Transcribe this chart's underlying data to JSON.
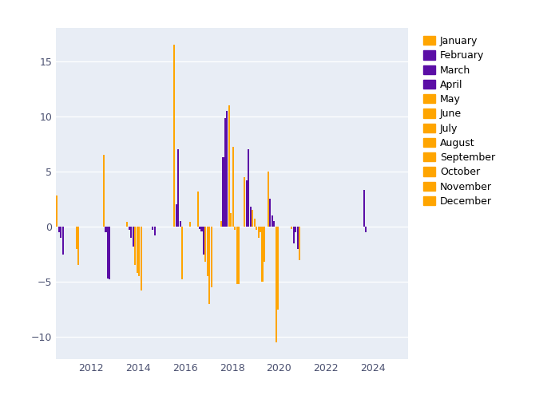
{
  "outer_bg": "#ffffff",
  "plot_bg_color": "#e8edf5",
  "orange_color": "#FFA500",
  "purple_color": "#5B0EA6",
  "months": [
    "January",
    "February",
    "March",
    "April",
    "May",
    "June",
    "July",
    "August",
    "September",
    "October",
    "November",
    "December"
  ],
  "month_colors": [
    "#FFA500",
    "#5B0EA6",
    "#5B0EA6",
    "#5B0EA6",
    "#FFA500",
    "#FFA500",
    "#FFA500",
    "#FFA500",
    "#FFA500",
    "#FFA500",
    "#FFA500",
    "#FFA500"
  ],
  "data": [
    {
      "year": 2011,
      "month": 1,
      "value": 2.8
    },
    {
      "year": 2011,
      "month": 2,
      "value": -0.5
    },
    {
      "year": 2011,
      "month": 3,
      "value": -1.0
    },
    {
      "year": 2011,
      "month": 4,
      "value": -2.5
    },
    {
      "year": 2011,
      "month": 11,
      "value": -2.0
    },
    {
      "year": 2011,
      "month": 12,
      "value": -3.5
    },
    {
      "year": 2013,
      "month": 1,
      "value": 6.5
    },
    {
      "year": 2013,
      "month": 2,
      "value": -0.5
    },
    {
      "year": 2013,
      "month": 3,
      "value": -4.7
    },
    {
      "year": 2013,
      "month": 4,
      "value": -4.8
    },
    {
      "year": 2014,
      "month": 1,
      "value": 0.4
    },
    {
      "year": 2014,
      "month": 2,
      "value": -0.3
    },
    {
      "year": 2014,
      "month": 3,
      "value": -1.0
    },
    {
      "year": 2014,
      "month": 4,
      "value": -1.8
    },
    {
      "year": 2014,
      "month": 5,
      "value": -3.5
    },
    {
      "year": 2014,
      "month": 6,
      "value": -4.2
    },
    {
      "year": 2014,
      "month": 7,
      "value": -4.5
    },
    {
      "year": 2014,
      "month": 8,
      "value": -5.8
    },
    {
      "year": 2015,
      "month": 2,
      "value": -0.3
    },
    {
      "year": 2015,
      "month": 3,
      "value": -0.8
    },
    {
      "year": 2016,
      "month": 1,
      "value": 16.5
    },
    {
      "year": 2016,
      "month": 2,
      "value": 2.0
    },
    {
      "year": 2016,
      "month": 3,
      "value": 7.0
    },
    {
      "year": 2016,
      "month": 4,
      "value": 0.5
    },
    {
      "year": 2016,
      "month": 5,
      "value": -4.8
    },
    {
      "year": 2016,
      "month": 9,
      "value": 0.4
    },
    {
      "year": 2017,
      "month": 1,
      "value": 3.2
    },
    {
      "year": 2017,
      "month": 2,
      "value": -0.2
    },
    {
      "year": 2017,
      "month": 3,
      "value": -0.4
    },
    {
      "year": 2017,
      "month": 4,
      "value": -2.5
    },
    {
      "year": 2017,
      "month": 5,
      "value": -3.2
    },
    {
      "year": 2017,
      "month": 6,
      "value": -4.5
    },
    {
      "year": 2017,
      "month": 7,
      "value": -7.0
    },
    {
      "year": 2017,
      "month": 8,
      "value": -5.5
    },
    {
      "year": 2018,
      "month": 1,
      "value": 0.5
    },
    {
      "year": 2018,
      "month": 2,
      "value": 6.3
    },
    {
      "year": 2018,
      "month": 3,
      "value": 9.8
    },
    {
      "year": 2018,
      "month": 4,
      "value": 10.5
    },
    {
      "year": 2018,
      "month": 5,
      "value": 11.0
    },
    {
      "year": 2018,
      "month": 6,
      "value": 1.2
    },
    {
      "year": 2018,
      "month": 7,
      "value": 7.2
    },
    {
      "year": 2018,
      "month": 8,
      "value": -0.3
    },
    {
      "year": 2018,
      "month": 9,
      "value": -5.2
    },
    {
      "year": 2018,
      "month": 10,
      "value": -5.2
    },
    {
      "year": 2019,
      "month": 1,
      "value": 4.5
    },
    {
      "year": 2019,
      "month": 2,
      "value": 4.2
    },
    {
      "year": 2019,
      "month": 3,
      "value": 7.0
    },
    {
      "year": 2019,
      "month": 4,
      "value": 1.8
    },
    {
      "year": 2019,
      "month": 5,
      "value": 1.5
    },
    {
      "year": 2019,
      "month": 6,
      "value": 0.7
    },
    {
      "year": 2019,
      "month": 7,
      "value": -0.3
    },
    {
      "year": 2019,
      "month": 8,
      "value": -1.0
    },
    {
      "year": 2019,
      "month": 9,
      "value": -0.5
    },
    {
      "year": 2019,
      "month": 10,
      "value": -5.0
    },
    {
      "year": 2019,
      "month": 11,
      "value": -3.2
    },
    {
      "year": 2020,
      "month": 1,
      "value": 5.0
    },
    {
      "year": 2020,
      "month": 2,
      "value": 2.5
    },
    {
      "year": 2020,
      "month": 3,
      "value": 1.0
    },
    {
      "year": 2020,
      "month": 4,
      "value": 0.5
    },
    {
      "year": 2020,
      "month": 5,
      "value": -10.5
    },
    {
      "year": 2020,
      "month": 6,
      "value": -7.5
    },
    {
      "year": 2021,
      "month": 1,
      "value": -0.2
    },
    {
      "year": 2021,
      "month": 2,
      "value": -1.5
    },
    {
      "year": 2021,
      "month": 3,
      "value": -0.5
    },
    {
      "year": 2021,
      "month": 4,
      "value": -2.0
    },
    {
      "year": 2021,
      "month": 5,
      "value": -3.0
    },
    {
      "year": 2024,
      "month": 2,
      "value": 3.3
    },
    {
      "year": 2024,
      "month": 3,
      "value": -0.5
    }
  ],
  "ylim": [
    -12,
    18
  ],
  "xlim_start": 2010.5,
  "xlim_end": 2025.5,
  "yticks": [
    -10,
    -5,
    0,
    5,
    10,
    15
  ],
  "xticks": [
    2012,
    2014,
    2016,
    2018,
    2020,
    2022,
    2024
  ],
  "bar_width": 0.07
}
